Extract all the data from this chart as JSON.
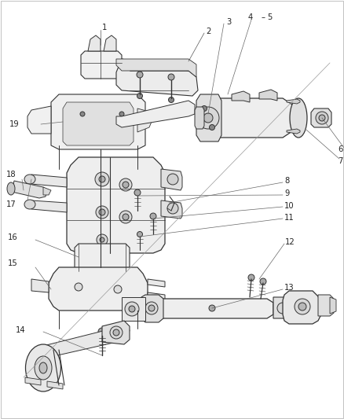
{
  "background_color": "#ffffff",
  "line_color": "#333333",
  "label_color": "#222222",
  "fig_width": 4.38,
  "fig_height": 5.33,
  "dpi": 100
}
